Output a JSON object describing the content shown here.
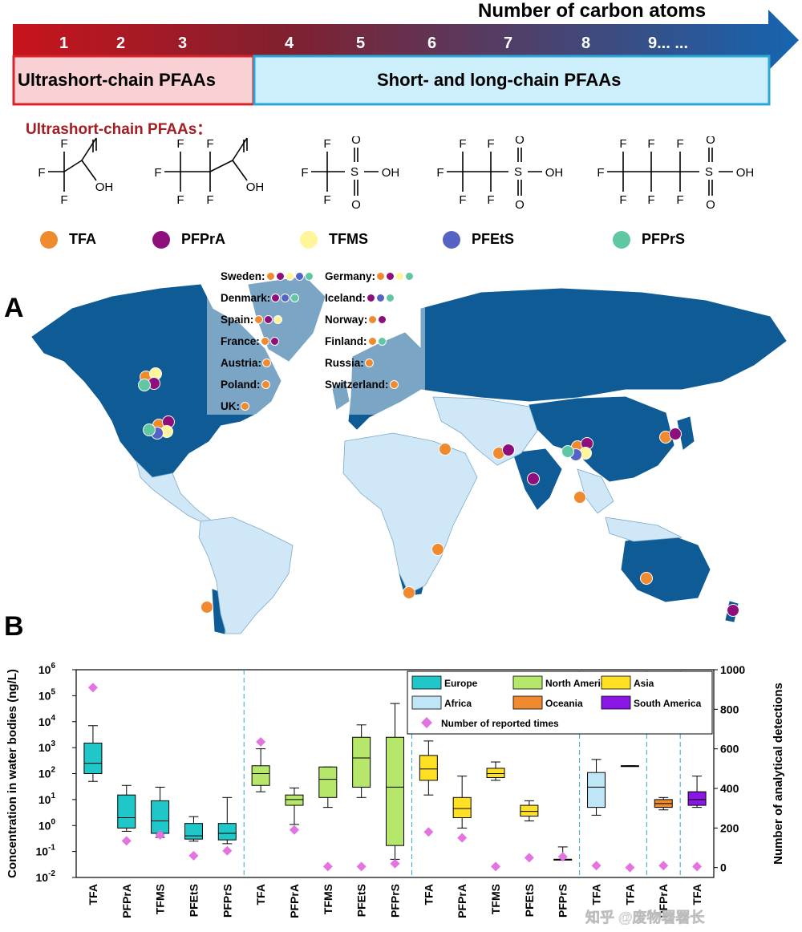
{
  "header": {
    "axis_title": "Number of carbon atoms",
    "carbon_numbers": [
      "1",
      "2",
      "3",
      "4",
      "5",
      "6",
      "7",
      "8",
      "9... ..."
    ],
    "box_ultrashort": "Ultrashort-chain PFAAs",
    "box_shortlong": "Short- and long-chain PFAAs"
  },
  "chemistry": {
    "heading": "Ultrashort-chain PFAAs：",
    "atoms": {
      "F": "F",
      "O": "O",
      "S": "S",
      "OH": "OH"
    }
  },
  "compounds": [
    {
      "name": "TFA",
      "color": "#f08a2e"
    },
    {
      "name": "PFPrA",
      "color": "#8e0f7c"
    },
    {
      "name": "TFMS",
      "color": "#fff59a"
    },
    {
      "name": "PFEtS",
      "color": "#5564c4"
    },
    {
      "name": "PFPrS",
      "color": "#5fc8a3"
    }
  ],
  "panels": {
    "a": "A",
    "b": "B"
  },
  "map": {
    "europe_box": [
      {
        "country": "Sweden:",
        "compounds": [
          "TFA",
          "PFPrA",
          "TFMS",
          "PFEtS",
          "PFPrS"
        ]
      },
      {
        "country": "Denmark:",
        "compounds": [
          "PFPrA",
          "PFEtS",
          "PFPrS"
        ]
      },
      {
        "country": "Spain:",
        "compounds": [
          "TFA",
          "PFPrA",
          "TFMS"
        ]
      },
      {
        "country": "France:",
        "compounds": [
          "TFA",
          "PFPrA"
        ]
      },
      {
        "country": "Austria:",
        "compounds": [
          "TFA"
        ]
      },
      {
        "country": "Poland:",
        "compounds": [
          "TFA"
        ]
      },
      {
        "country": "UK:",
        "compounds": [
          "TFA"
        ]
      },
      {
        "country": "Germany:",
        "compounds": [
          "TFA",
          "PFPrA",
          "TFMS",
          "PFPrS"
        ]
      },
      {
        "country": "Iceland:",
        "compounds": [
          "PFPrA",
          "PFEtS",
          "PFPrS"
        ]
      },
      {
        "country": "Norway:",
        "compounds": [
          "TFA",
          "PFPrA"
        ]
      },
      {
        "country": "Finland:",
        "compounds": [
          "TFA",
          "PFPrS"
        ]
      },
      {
        "country": "Russia:",
        "compounds": [
          "TFA"
        ]
      },
      {
        "country": "Switzerland:",
        "compounds": [
          "TFA"
        ]
      }
    ]
  },
  "colors": {
    "land_dark": "#0e5b96",
    "land_light": "#cfe7f6",
    "arrow_start": "#c8141c",
    "arrow_end": "#1565b0",
    "box_ultrashort_fill": "#f9d0d3",
    "box_ultrashort_border": "#d9232a",
    "box_shortlong_fill": "#cdeefb",
    "box_shortlong_border": "#2aa7d8",
    "reported_marker": "#e373e0"
  },
  "chart_data": {
    "type": "box",
    "y_left_label": "Concentration in water bodies (ng/L)",
    "y_right_label": "Number of analytical detections",
    "y_left_scale": "log10",
    "y_left_range": [
      0.01,
      1000000
    ],
    "y_left_ticks": [
      {
        "base": "10",
        "exp": "6"
      },
      {
        "base": "10",
        "exp": "5"
      },
      {
        "base": "10",
        "exp": "4"
      },
      {
        "base": "10",
        "exp": "3"
      },
      {
        "base": "10",
        "exp": "2"
      },
      {
        "base": "10",
        "exp": "1"
      },
      {
        "base": "10",
        "exp": "0"
      },
      {
        "base": "10",
        "exp": "-1"
      },
      {
        "base": "10",
        "exp": "-2"
      }
    ],
    "y_right_range": [
      -50,
      1000
    ],
    "y_right_ticks": [
      "1000",
      "800",
      "600",
      "400",
      "200",
      "0"
    ],
    "legend": [
      {
        "name": "Europe",
        "color": "#1fc7c8"
      },
      {
        "name": "North America",
        "color": "#b7e76a"
      },
      {
        "name": "Asia",
        "color": "#ffe023"
      },
      {
        "name": "Africa",
        "color": "#bfe6f7"
      },
      {
        "name": "Oceania",
        "color": "#ef8a2e"
      },
      {
        "name": "South America",
        "color": "#8a16e6"
      },
      {
        "name": "Number of reported times",
        "color": "#e373e0"
      }
    ],
    "groups": [
      {
        "region": "Europe",
        "label": "TFA",
        "whislo": 50,
        "q1": 100,
        "med": 250,
        "q3": 1500,
        "whishi": 7000,
        "reported": 910
      },
      {
        "region": "Europe",
        "label": "PFPrA",
        "whislo": 0.6,
        "q1": 0.8,
        "med": 2,
        "q3": 15,
        "whishi": 35,
        "reported": 135
      },
      {
        "region": "Europe",
        "label": "TFMS",
        "whislo": 0.35,
        "q1": 0.5,
        "med": 1.5,
        "q3": 9,
        "whishi": 30,
        "reported": 165
      },
      {
        "region": "Europe",
        "label": "PFEtS",
        "whislo": 0.25,
        "q1": 0.3,
        "med": 0.4,
        "q3": 1.2,
        "whishi": 2.2,
        "reported": 60
      },
      {
        "region": "Europe",
        "label": "PFPrS",
        "whislo": 0.2,
        "q1": 0.28,
        "med": 0.5,
        "q3": 1.2,
        "whishi": 12,
        "reported": 85
      },
      {
        "region": "North America",
        "label": "TFA",
        "whislo": 20,
        "q1": 35,
        "med": 100,
        "q3": 200,
        "whishi": 900,
        "reported": 635
      },
      {
        "region": "North America",
        "label": "PFPrA",
        "whislo": 1.1,
        "q1": 6,
        "med": 10,
        "q3": 15,
        "whishi": 28,
        "reported": 190
      },
      {
        "region": "North America",
        "label": "TFMS",
        "whislo": 5,
        "q1": 12,
        "med": 60,
        "q3": 180,
        "whishi": 180,
        "reported": 5
      },
      {
        "region": "North America",
        "label": "PFEtS",
        "whislo": 12,
        "q1": 30,
        "med": 400,
        "q3": 2500,
        "whishi": 7500,
        "reported": 5
      },
      {
        "region": "North America",
        "label": "PFPrS",
        "whislo": 0.05,
        "q1": 0.17,
        "med": 30,
        "q3": 2500,
        "whishi": 50000,
        "reported": 20
      },
      {
        "region": "Asia",
        "label": "TFA",
        "whislo": 15,
        "q1": 55,
        "med": 150,
        "q3": 500,
        "whishi": 1800,
        "reported": 180
      },
      {
        "region": "Asia",
        "label": "PFPrA",
        "whislo": 0.8,
        "q1": 2,
        "med": 4.5,
        "q3": 12,
        "whishi": 80,
        "reported": 150
      },
      {
        "region": "Asia",
        "label": "TFMS",
        "whislo": 55,
        "q1": 70,
        "med": 100,
        "q3": 160,
        "whishi": 280,
        "reported": 5
      },
      {
        "region": "Asia",
        "label": "PFEtS",
        "whislo": 1.5,
        "q1": 2.3,
        "med": 3.5,
        "q3": 6,
        "whishi": 9,
        "reported": 50
      },
      {
        "region": "Asia",
        "label": "PFPrS",
        "whislo": 0.05,
        "q1": 0.05,
        "med": 0.05,
        "q3": 0.05,
        "whishi": 0.15,
        "reported": 55
      },
      {
        "region": "Africa",
        "label": "TFA",
        "whislo": 2.5,
        "q1": 5,
        "med": 30,
        "q3": 110,
        "whishi": 350,
        "reported": 10
      },
      {
        "region": "Africa",
        "label": "TFA",
        "whislo": 200,
        "q1": 200,
        "med": 200,
        "q3": 200,
        "whishi": 200,
        "reported": 0
      },
      {
        "region": "Oceania",
        "label": "PFPrA",
        "whislo": 4,
        "q1": 5,
        "med": 7,
        "q3": 10,
        "whishi": 12,
        "reported": 10
      },
      {
        "region": "South America",
        "label": "TFA",
        "whislo": 5,
        "q1": 6,
        "med": 10,
        "q3": 20,
        "whishi": 80,
        "reported": 5
      }
    ]
  },
  "watermark": "知乎 @废物署署长"
}
